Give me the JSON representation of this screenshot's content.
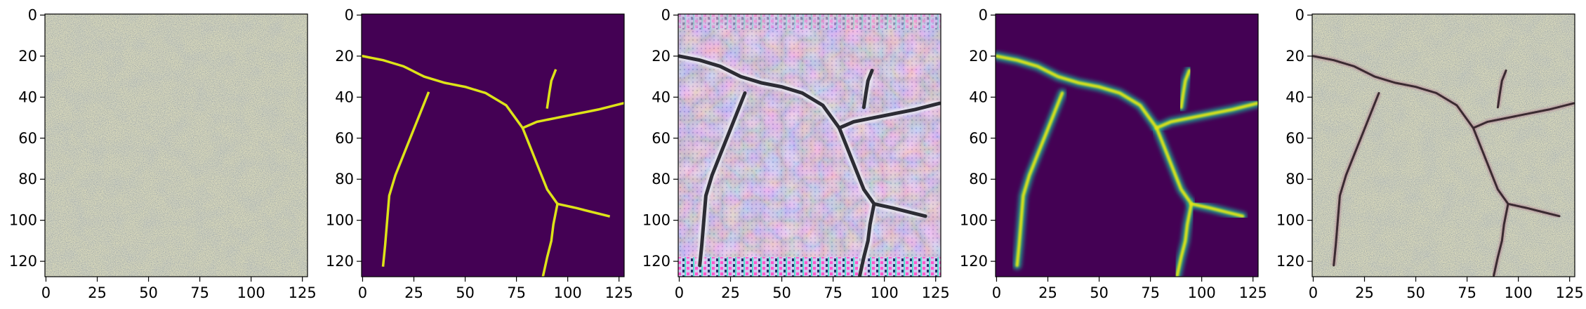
{
  "figure": {
    "panels": [
      {
        "id": "input-photo",
        "kind": "photo"
      },
      {
        "id": "ground-truth",
        "kind": "mask"
      },
      {
        "id": "generated",
        "kind": "generated"
      },
      {
        "id": "prediction",
        "kind": "heatmap"
      },
      {
        "id": "overlay",
        "kind": "overlay"
      }
    ],
    "axes": {
      "x_ticks": [
        "0",
        "25",
        "50",
        "75",
        "100",
        "125"
      ],
      "y_ticks": [
        "0",
        "20",
        "40",
        "60",
        "80",
        "100",
        "120"
      ],
      "x_tick_values": [
        0,
        25,
        50,
        75,
        100,
        125
      ],
      "y_tick_values": [
        0,
        20,
        40,
        60,
        80,
        100,
        120
      ],
      "x_range": [
        -0.5,
        127.5
      ],
      "y_range": [
        127.5,
        -0.5
      ]
    },
    "crack_paths": [
      [
        [
          0,
          20
        ],
        [
          10,
          22
        ],
        [
          20,
          25
        ],
        [
          30,
          30
        ],
        [
          40,
          33
        ],
        [
          50,
          35
        ],
        [
          60,
          38
        ],
        [
          70,
          44
        ],
        [
          78,
          55
        ]
      ],
      [
        [
          78,
          55
        ],
        [
          85,
          52
        ],
        [
          95,
          50
        ],
        [
          105,
          48
        ],
        [
          115,
          46
        ],
        [
          127,
          43
        ]
      ],
      [
        [
          78,
          55
        ],
        [
          82,
          65
        ],
        [
          86,
          75
        ],
        [
          90,
          85
        ],
        [
          95,
          92
        ]
      ],
      [
        [
          95,
          92
        ],
        [
          104,
          94
        ],
        [
          112,
          96
        ],
        [
          120,
          98
        ]
      ],
      [
        [
          95,
          92
        ],
        [
          93,
          102
        ],
        [
          92,
          110
        ],
        [
          90,
          118
        ],
        [
          88,
          127
        ]
      ],
      [
        [
          32,
          38
        ],
        [
          28,
          48
        ],
        [
          24,
          58
        ],
        [
          20,
          68
        ],
        [
          16,
          78
        ],
        [
          13,
          88
        ],
        [
          12,
          100
        ],
        [
          11,
          112
        ],
        [
          10,
          122
        ]
      ],
      [
        [
          90,
          45
        ],
        [
          91,
          38
        ],
        [
          92,
          32
        ],
        [
          94,
          27
        ]
      ]
    ],
    "colors": {
      "mask_background": "#440154",
      "mask_line": "#dde318",
      "heat_mid": "#21918c",
      "photo_base": "#d8d8bc",
      "crack_dark": "#3a2a30"
    }
  }
}
